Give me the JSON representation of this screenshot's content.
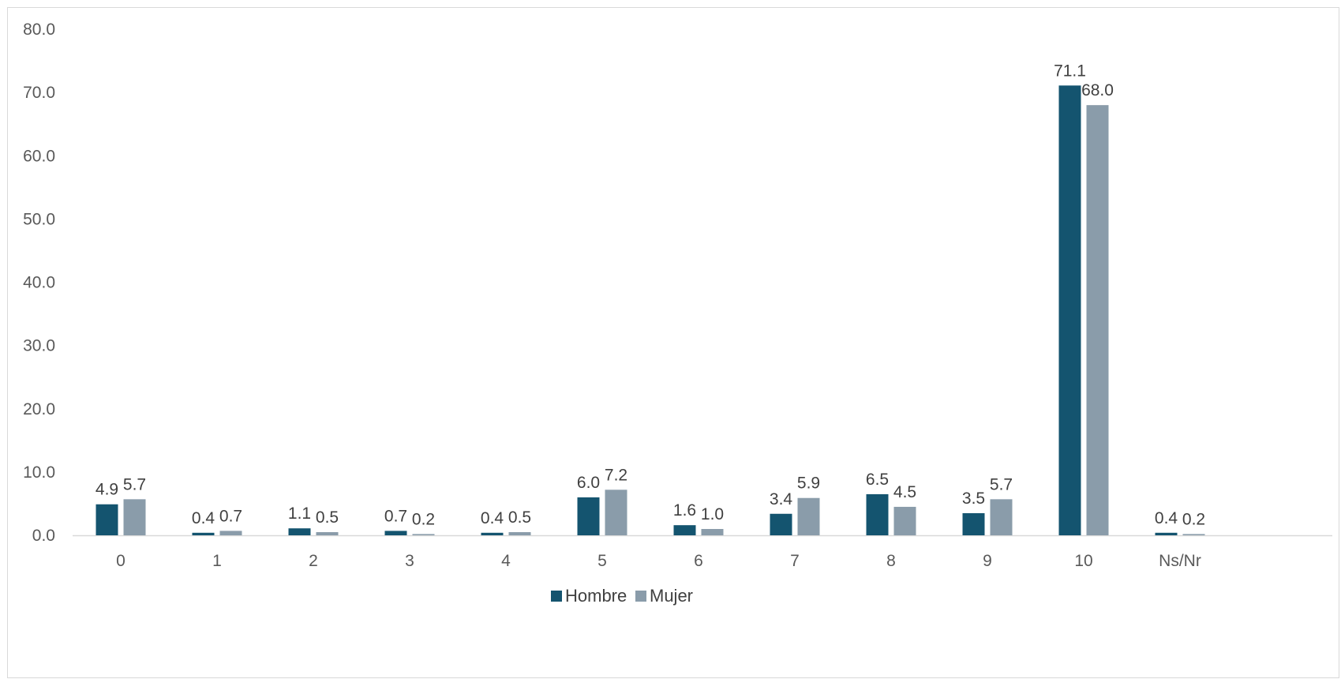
{
  "chart_data": {
    "type": "bar",
    "title": "",
    "xlabel": "",
    "ylabel": "",
    "categories": [
      "0",
      "1",
      "2",
      "3",
      "4",
      "5",
      "6",
      "7",
      "8",
      "9",
      "10",
      "Ns/Nr"
    ],
    "series": [
      {
        "name": "Hombre",
        "color": "#14546f",
        "values": [
          4.9,
          0.4,
          1.1,
          0.7,
          0.4,
          6.0,
          1.6,
          3.4,
          6.5,
          3.5,
          71.1,
          0.4
        ],
        "labels": [
          "4.9",
          "0.4",
          "1.1",
          "0.7",
          "0.4",
          "6.0",
          "1.6",
          "3.4",
          "6.5",
          "3.5",
          "71.1",
          "0.4"
        ]
      },
      {
        "name": "Mujer",
        "color": "#8a9caa",
        "values": [
          5.7,
          0.7,
          0.5,
          0.2,
          0.5,
          7.2,
          1.0,
          5.9,
          4.5,
          5.7,
          68.0,
          0.2
        ],
        "labels": [
          "5.7",
          "0.7",
          "0.5",
          "0.2",
          "0.5",
          "7.2",
          "1.0",
          "5.9",
          "4.5",
          "5.7",
          "68.0",
          "0.2"
        ]
      }
    ],
    "ylim": [
      0,
      80
    ],
    "yticks": [
      "0.0",
      "10.0",
      "20.0",
      "30.0",
      "40.0",
      "50.0",
      "60.0",
      "70.0",
      "80.0"
    ],
    "grid": false,
    "legend": "bottom-center",
    "axis_color": "#d9d9d9"
  }
}
